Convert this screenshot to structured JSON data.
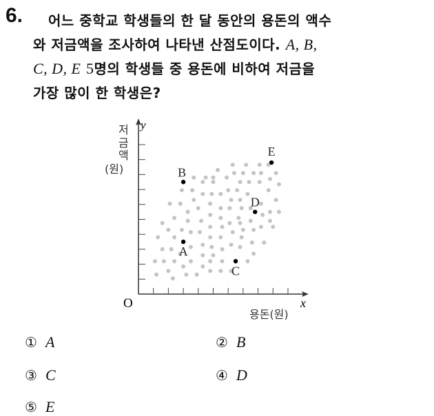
{
  "question": {
    "number": "6.",
    "line1": "어느 중학교 학생들의 한 달 동안의 용돈의 액수",
    "line2_text": "와 저금액을 조사하여 나타낸 산점도이다.",
    "line2_math": "A, B,",
    "line3_math": "C, D, E",
    "line3_num": "5",
    "line3_text": "명의 학생들 중 용돈에 비하여 저금을",
    "line4": "가장 많이 한 학생은?"
  },
  "chart_data": {
    "type": "scatter",
    "xlabel": "용돈(원)",
    "ylabel": [
      "저",
      "금",
      "액",
      "(원)"
    ],
    "x_axis_symbol": "x",
    "y_axis_symbol": "y",
    "origin_label": "O",
    "xlim": [
      0,
      11
    ],
    "ylim": [
      0,
      11
    ],
    "ticks": [
      1,
      2,
      3,
      4,
      5,
      6,
      7,
      8,
      9,
      10
    ],
    "grid": false,
    "labeled_points": [
      {
        "label": "A",
        "x": 3.0,
        "y": 3.5
      },
      {
        "label": "B",
        "x": 3.0,
        "y": 7.5
      },
      {
        "label": "C",
        "x": 6.5,
        "y": 2.2
      },
      {
        "label": "D",
        "x": 7.8,
        "y": 5.5
      },
      {
        "label": "E",
        "x": 8.9,
        "y": 8.8
      }
    ],
    "background_points": [
      [
        6.3,
        8.65
      ],
      [
        7.2,
        8.65
      ],
      [
        8.1,
        8.65
      ],
      [
        8.7,
        8.65
      ],
      [
        5.3,
        8.3
      ],
      [
        6.4,
        8.1
      ],
      [
        7.0,
        8.1
      ],
      [
        7.7,
        8.1
      ],
      [
        8.2,
        8.1
      ],
      [
        9.2,
        8.1
      ],
      [
        3.7,
        7.8
      ],
      [
        4.5,
        7.8
      ],
      [
        5.0,
        7.8
      ],
      [
        5.9,
        7.8
      ],
      [
        4.3,
        7.5
      ],
      [
        5.0,
        7.5
      ],
      [
        6.8,
        7.5
      ],
      [
        7.4,
        7.5
      ],
      [
        8.1,
        7.5
      ],
      [
        8.8,
        7.7
      ],
      [
        9.4,
        7.35
      ],
      [
        2.9,
        6.95
      ],
      [
        3.6,
        6.95
      ],
      [
        6.0,
        6.95
      ],
      [
        6.6,
        6.95
      ],
      [
        8.7,
        6.95
      ],
      [
        4.3,
        6.7
      ],
      [
        4.9,
        6.7
      ],
      [
        5.5,
        6.7
      ],
      [
        7.3,
        6.7
      ],
      [
        3.7,
        6.3
      ],
      [
        6.2,
        6.3
      ],
      [
        6.8,
        6.3
      ],
      [
        9.2,
        6.3
      ],
      [
        2.1,
        6.05
      ],
      [
        2.8,
        6.05
      ],
      [
        4.8,
        6.05
      ],
      [
        8.2,
        6.05
      ],
      [
        4.0,
        5.75
      ],
      [
        5.5,
        5.75
      ],
      [
        6.1,
        5.75
      ],
      [
        6.9,
        5.75
      ],
      [
        7.5,
        5.75
      ],
      [
        3.3,
        5.5
      ],
      [
        8.8,
        5.5
      ],
      [
        9.4,
        5.5
      ],
      [
        4.8,
        5.3
      ],
      [
        8.3,
        5.3
      ],
      [
        2.4,
        5.1
      ],
      [
        5.5,
        5.1
      ],
      [
        6.7,
        5.1
      ],
      [
        3.3,
        4.9
      ],
      [
        4.2,
        4.9
      ],
      [
        7.5,
        4.9
      ],
      [
        8.8,
        4.9
      ],
      [
        1.6,
        4.75
      ],
      [
        6.1,
        4.75
      ],
      [
        6.8,
        4.75
      ],
      [
        4.8,
        4.5
      ],
      [
        5.6,
        4.5
      ],
      [
        8.2,
        4.5
      ],
      [
        9.0,
        4.5
      ],
      [
        2.0,
        4.3
      ],
      [
        2.9,
        4.3
      ],
      [
        7.0,
        4.3
      ],
      [
        7.7,
        4.3
      ],
      [
        3.5,
        4.15
      ],
      [
        4.1,
        4.15
      ],
      [
        6.3,
        4.15
      ],
      [
        1.3,
        3.8
      ],
      [
        2.4,
        3.8
      ],
      [
        4.8,
        3.8
      ],
      [
        5.5,
        3.8
      ],
      [
        6.9,
        3.8
      ],
      [
        7.6,
        3.45
      ],
      [
        8.4,
        3.45
      ],
      [
        4.3,
        3.3
      ],
      [
        6.2,
        3.3
      ],
      [
        3.5,
        3.15
      ],
      [
        4.9,
        3.15
      ],
      [
        6.8,
        3.15
      ],
      [
        1.6,
        3.0
      ],
      [
        2.2,
        3.0
      ],
      [
        5.6,
        3.0
      ],
      [
        2.8,
        2.7
      ],
      [
        7.7,
        2.7
      ],
      [
        4.3,
        2.6
      ],
      [
        5.0,
        2.6
      ],
      [
        1.1,
        2.2
      ],
      [
        1.7,
        2.2
      ],
      [
        2.4,
        2.2
      ],
      [
        3.5,
        2.2
      ],
      [
        4.8,
        2.2
      ],
      [
        5.6,
        2.2
      ],
      [
        7.3,
        2.2
      ],
      [
        3.0,
        1.85
      ],
      [
        4.3,
        1.85
      ],
      [
        2.0,
        1.55
      ],
      [
        4.8,
        1.55
      ],
      [
        5.5,
        1.55
      ],
      [
        6.2,
        1.55
      ],
      [
        1.2,
        1.3
      ],
      [
        3.2,
        1.3
      ],
      [
        3.9,
        1.3
      ],
      [
        2.3,
        1.05
      ]
    ],
    "colors": {
      "background_points": "#c4c4c4",
      "labeled_points": "#000000"
    }
  },
  "options": [
    {
      "num": "①",
      "label": "A"
    },
    {
      "num": "②",
      "label": "B"
    },
    {
      "num": "③",
      "label": "C"
    },
    {
      "num": "④",
      "label": "D"
    },
    {
      "num": "⑤",
      "label": "E"
    }
  ]
}
